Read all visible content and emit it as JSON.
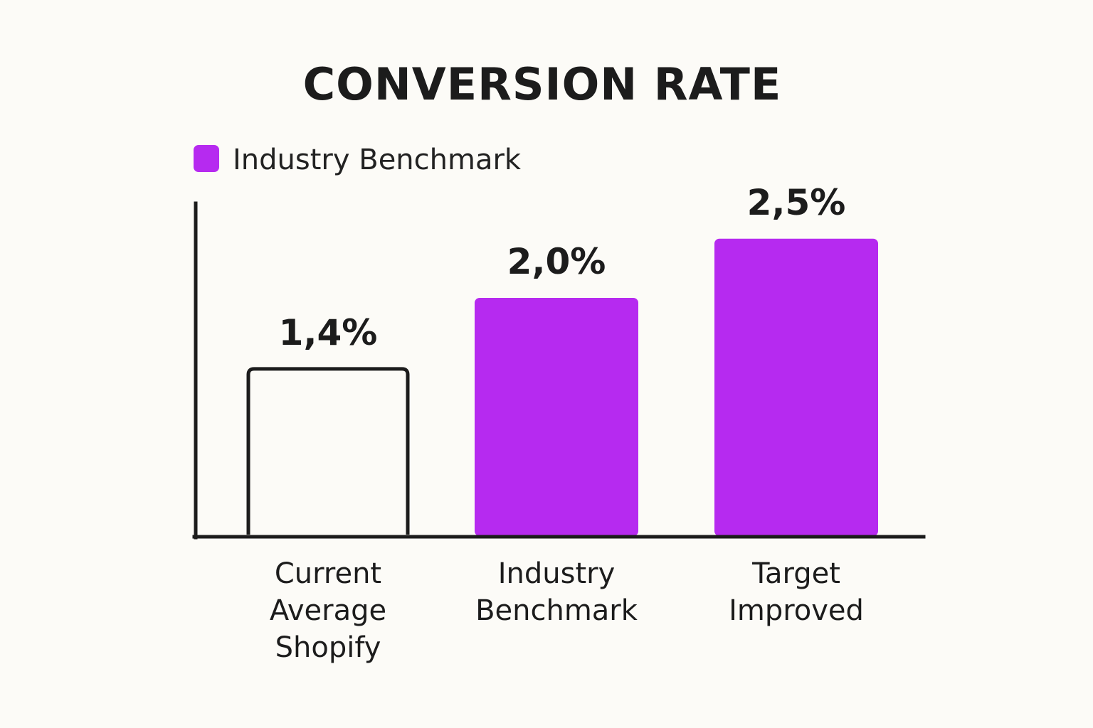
{
  "chart_data": {
    "type": "bar",
    "title": "CONVERSION RATE",
    "legend": {
      "label": "Industry Benchmark",
      "color": "#b62af0",
      "placement": "top-left"
    },
    "categories": [
      [
        "Current",
        "Average",
        "Shopify"
      ],
      [
        "Industry",
        "Benchmark"
      ],
      [
        "Target",
        "Improved"
      ]
    ],
    "values": [
      1.4,
      2.0,
      2.5
    ],
    "value_labels": [
      "1,4%",
      "2,0%",
      "2,5%"
    ],
    "bar_styles": [
      "outline",
      "filled",
      "filled"
    ],
    "colors": {
      "filled": "#b62af0",
      "outline": "#1c1c1c",
      "axis": "#1c1c1c"
    },
    "ylim": [
      0,
      3.0
    ],
    "xlabel": "",
    "ylabel": "",
    "grid": false
  }
}
